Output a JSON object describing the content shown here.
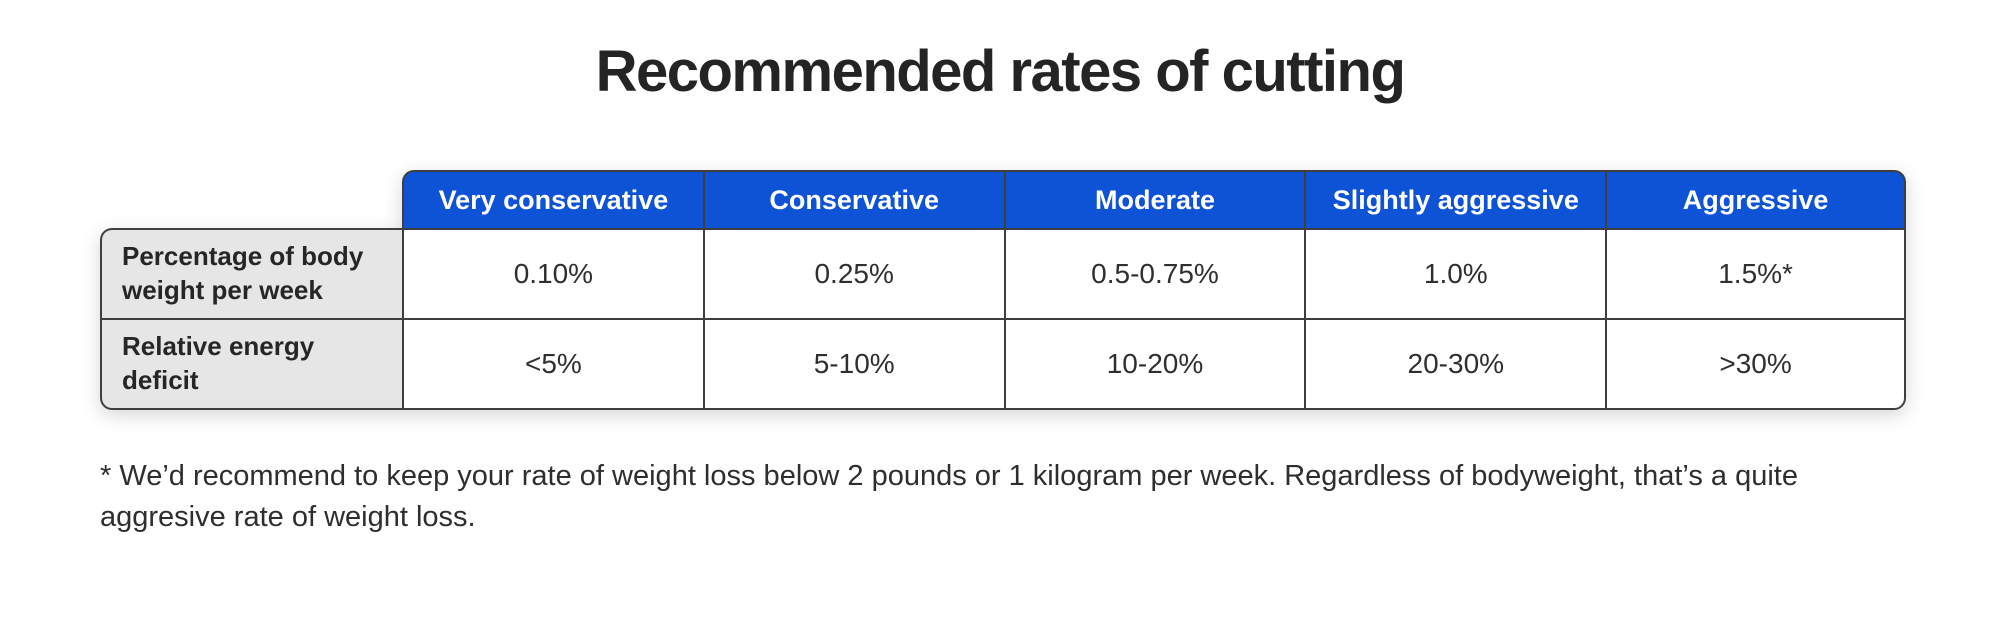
{
  "title": "Recommended rates of cutting",
  "chart_data": {
    "type": "table",
    "title": "Recommended rates of cutting",
    "column_headers": [
      "Very conservative",
      "Conservative",
      "Moderate",
      "Slightly aggressive",
      "Aggressive"
    ],
    "row_headers": [
      "Percentage of body weight per week",
      "Relative energy deficit"
    ],
    "rows": [
      [
        "0.10%",
        "0.25%",
        "0.5-0.75%",
        "1.0%",
        "1.5%*"
      ],
      [
        "<5%",
        "5-10%",
        "10-20%",
        "20-30%",
        ">30%"
      ]
    ],
    "footnote": "* We’d recommend to keep your rate of weight loss below 2 pounds or 1 kilogram per week. Regardless of bodyweight, that’s a quite aggresive rate of weight loss."
  },
  "colors": {
    "header_bg": "#0e52d6",
    "header_text": "#ffffff",
    "label_bg": "#e6e6e6",
    "border": "#3f3f3f",
    "text": "#242424"
  }
}
